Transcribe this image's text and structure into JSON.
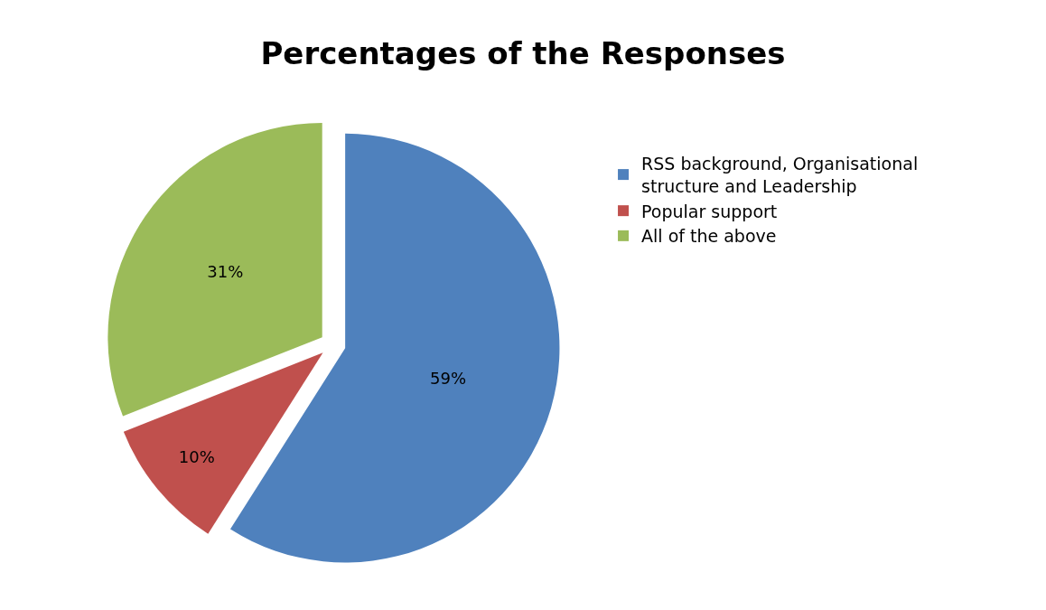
{
  "chart_data": {
    "type": "pie",
    "title": "Percentages of the Responses",
    "categories": [
      "RSS background, Organisational structure and Leadership",
      "Popular support",
      "All of the above"
    ],
    "values": [
      59,
      10,
      31
    ],
    "value_labels": [
      "59%",
      "10%",
      "31%"
    ],
    "colors": [
      "#4f81bd",
      "#c0504d",
      "#9bbb59"
    ],
    "legend": "top right"
  }
}
